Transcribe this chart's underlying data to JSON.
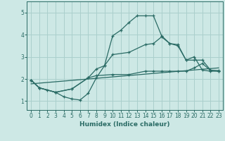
{
  "xlabel": "Humidex (Indice chaleur)",
  "background_color": "#cde8e5",
  "grid_color": "#aacfcc",
  "line_color": "#2a6b65",
  "xlim": [
    -0.5,
    23.5
  ],
  "ylim": [
    0.6,
    5.5
  ],
  "yticks": [
    1,
    2,
    3,
    4,
    5
  ],
  "xticks": [
    0,
    1,
    2,
    3,
    4,
    5,
    6,
    7,
    8,
    9,
    10,
    11,
    12,
    13,
    14,
    15,
    16,
    17,
    18,
    19,
    20,
    21,
    22,
    23
  ],
  "line1_x": [
    0,
    1,
    2,
    3,
    4,
    5,
    6,
    7,
    8,
    9,
    10,
    11,
    12,
    13,
    14,
    15,
    16,
    17,
    18,
    19,
    20,
    21,
    22,
    23
  ],
  "line1_y": [
    1.95,
    1.6,
    1.5,
    1.4,
    1.2,
    1.1,
    1.05,
    1.35,
    2.05,
    2.6,
    3.95,
    4.2,
    4.55,
    4.85,
    4.85,
    4.85,
    3.95,
    3.6,
    3.5,
    2.85,
    3.0,
    2.4,
    2.35,
    2.35
  ],
  "line2_x": [
    0,
    1,
    3,
    5,
    7,
    8,
    9,
    10,
    12,
    14,
    15,
    16,
    17,
    18,
    19,
    20,
    21,
    22,
    23
  ],
  "line2_y": [
    1.95,
    1.6,
    1.4,
    1.55,
    2.05,
    2.45,
    2.6,
    3.1,
    3.2,
    3.55,
    3.6,
    3.9,
    3.6,
    3.55,
    2.85,
    2.85,
    2.85,
    2.4,
    2.35
  ],
  "line3_x": [
    0,
    1,
    3,
    5,
    7,
    8,
    10,
    12,
    14,
    15,
    16,
    17,
    18,
    19,
    20,
    21,
    22,
    23
  ],
  "line3_y": [
    1.95,
    1.6,
    1.4,
    1.55,
    2.05,
    2.15,
    2.2,
    2.2,
    2.35,
    2.35,
    2.35,
    2.35,
    2.35,
    2.35,
    2.5,
    2.7,
    2.38,
    2.38
  ],
  "line4_x": [
    0,
    23
  ],
  "line4_y": [
    1.78,
    2.5
  ]
}
